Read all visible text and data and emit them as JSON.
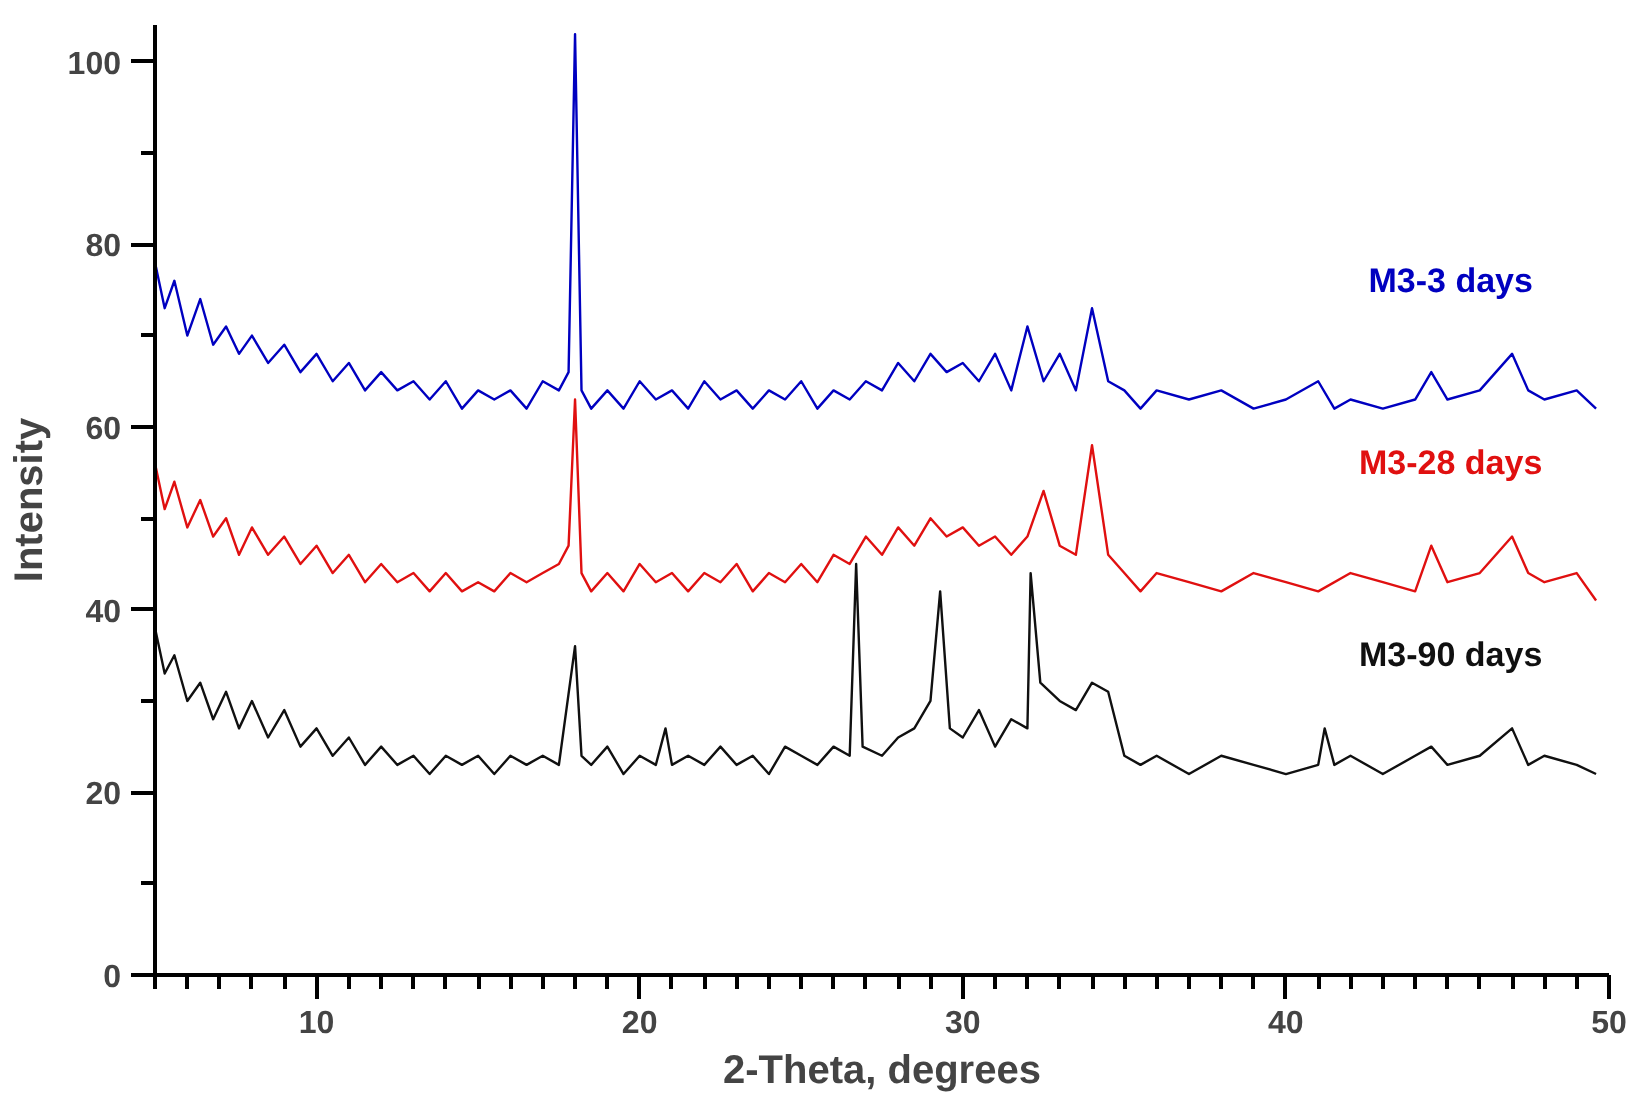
{
  "chart_data": {
    "type": "line",
    "xlabel": "2-Theta, degrees",
    "ylabel": "Intensity",
    "xlim": [
      5,
      50
    ],
    "ylim": [
      0,
      104
    ],
    "xticks": [
      {
        "value": 5,
        "label": null
      },
      {
        "value": 6,
        "label": null
      },
      {
        "value": 7,
        "label": null
      },
      {
        "value": 8,
        "label": null
      },
      {
        "value": 9,
        "label": null
      },
      10,
      {
        "value": 11,
        "label": null
      },
      {
        "value": 12,
        "label": null
      },
      {
        "value": 13,
        "label": null
      },
      {
        "value": 14,
        "label": null
      },
      {
        "value": 15,
        "label": null
      },
      {
        "value": 16,
        "label": null
      },
      {
        "value": 17,
        "label": null
      },
      {
        "value": 18,
        "label": null
      },
      {
        "value": 19,
        "label": null
      },
      20,
      {
        "value": 21,
        "label": null
      },
      {
        "value": 22,
        "label": null
      },
      {
        "value": 23,
        "label": null
      },
      {
        "value": 24,
        "label": null
      },
      {
        "value": 25,
        "label": null
      },
      {
        "value": 26,
        "label": null
      },
      {
        "value": 27,
        "label": null
      },
      {
        "value": 28,
        "label": null
      },
      {
        "value": 29,
        "label": null
      },
      30,
      {
        "value": 31,
        "label": null
      },
      {
        "value": 32,
        "label": null
      },
      {
        "value": 33,
        "label": null
      },
      {
        "value": 34,
        "label": null
      },
      {
        "value": 35,
        "label": null
      },
      {
        "value": 36,
        "label": null
      },
      {
        "value": 37,
        "label": null
      },
      {
        "value": 38,
        "label": null
      },
      {
        "value": 39,
        "label": null
      },
      40,
      {
        "value": 41,
        "label": null
      },
      {
        "value": 42,
        "label": null
      },
      {
        "value": 43,
        "label": null
      },
      {
        "value": 44,
        "label": null
      },
      {
        "value": 45,
        "label": null
      },
      {
        "value": 46,
        "label": null
      },
      {
        "value": 47,
        "label": null
      },
      {
        "value": 48,
        "label": null
      },
      {
        "value": 49,
        "label": null
      },
      50
    ],
    "yticks": [
      0,
      {
        "value": 10,
        "label": null
      },
      20,
      {
        "value": 30,
        "label": null
      },
      40,
      {
        "value": 50,
        "label": null
      },
      60,
      {
        "value": 70,
        "label": null
      },
      80,
      {
        "value": 90,
        "label": null
      },
      100
    ],
    "grid": false,
    "series": [
      {
        "name": "M3-3 days",
        "color": "#0000c0",
        "x": [
          5,
          5.3,
          5.6,
          6,
          6.4,
          6.8,
          7.2,
          7.6,
          8,
          8.5,
          9,
          9.5,
          10,
          10.5,
          11,
          11.5,
          12,
          12.5,
          13,
          13.5,
          14,
          14.5,
          15,
          15.5,
          16,
          16.5,
          17,
          17.5,
          17.8,
          18,
          18.2,
          18.5,
          19,
          19.5,
          20,
          20.5,
          21,
          21.5,
          22,
          22.5,
          23,
          23.5,
          24,
          24.5,
          25,
          25.5,
          26,
          26.5,
          27,
          27.5,
          28,
          28.5,
          29,
          29.5,
          30,
          30.5,
          31,
          31.5,
          32,
          32.5,
          33,
          33.5,
          34,
          34.5,
          35,
          35.5,
          36,
          37,
          38,
          39,
          40,
          41,
          41.5,
          42,
          43,
          44,
          44.5,
          45,
          46,
          47,
          47.5,
          48,
          49,
          49.6
        ],
        "values": [
          78,
          73,
          76,
          70,
          74,
          69,
          71,
          68,
          70,
          67,
          69,
          66,
          68,
          65,
          67,
          64,
          66,
          64,
          65,
          63,
          65,
          62,
          64,
          63,
          64,
          62,
          65,
          64,
          66,
          103,
          64,
          62,
          64,
          62,
          65,
          63,
          64,
          62,
          65,
          63,
          64,
          62,
          64,
          63,
          65,
          62,
          64,
          63,
          65,
          64,
          67,
          65,
          68,
          66,
          67,
          65,
          68,
          64,
          71,
          65,
          68,
          64,
          73,
          65,
          64,
          62,
          64,
          63,
          64,
          62,
          63,
          65,
          62,
          63,
          62,
          63,
          66,
          63,
          64,
          68,
          64,
          63,
          64,
          62
        ]
      },
      {
        "name": "M3-28 days",
        "color": "#e01010",
        "x": [
          5,
          5.3,
          5.6,
          6,
          6.4,
          6.8,
          7.2,
          7.6,
          8,
          8.5,
          9,
          9.5,
          10,
          10.5,
          11,
          11.5,
          12,
          12.5,
          13,
          13.5,
          14,
          14.5,
          15,
          15.5,
          16,
          16.5,
          17,
          17.5,
          17.8,
          18,
          18.2,
          18.5,
          19,
          19.5,
          20,
          20.5,
          21,
          21.5,
          22,
          22.5,
          23,
          23.5,
          24,
          24.5,
          25,
          25.5,
          26,
          26.5,
          27,
          27.5,
          28,
          28.5,
          29,
          29.5,
          30,
          30.5,
          31,
          31.5,
          32,
          32.5,
          33,
          33.5,
          34,
          34.5,
          35,
          35.5,
          36,
          37,
          38,
          39,
          40,
          41,
          42,
          43,
          44,
          44.5,
          45,
          46,
          47,
          47.5,
          48,
          49,
          49.6
        ],
        "values": [
          56,
          51,
          54,
          49,
          52,
          48,
          50,
          46,
          49,
          46,
          48,
          45,
          47,
          44,
          46,
          43,
          45,
          43,
          44,
          42,
          44,
          42,
          43,
          42,
          44,
          43,
          44,
          45,
          47,
          63,
          44,
          42,
          44,
          42,
          45,
          43,
          44,
          42,
          44,
          43,
          45,
          42,
          44,
          43,
          45,
          43,
          46,
          45,
          48,
          46,
          49,
          47,
          50,
          48,
          49,
          47,
          48,
          46,
          48,
          53,
          47,
          46,
          58,
          46,
          44,
          42,
          44,
          43,
          42,
          44,
          43,
          42,
          44,
          43,
          42,
          47,
          43,
          44,
          48,
          44,
          43,
          44,
          41
        ]
      },
      {
        "name": "M3-90 days",
        "color": "#101010",
        "x": [
          5,
          5.3,
          5.6,
          6,
          6.4,
          6.8,
          7.2,
          7.6,
          8,
          8.5,
          9,
          9.5,
          10,
          10.5,
          11,
          11.5,
          12,
          12.5,
          13,
          13.5,
          14,
          14.5,
          15,
          15.5,
          16,
          16.5,
          17,
          17.5,
          18,
          18.2,
          18.5,
          19,
          19.5,
          20,
          20.5,
          20.8,
          21,
          21.5,
          22,
          22.5,
          23,
          23.5,
          24,
          24.5,
          25,
          25.5,
          26,
          26.5,
          26.7,
          26.9,
          27.5,
          28,
          28.5,
          29,
          29.3,
          29.6,
          30,
          30.5,
          31,
          31.5,
          32,
          32.1,
          32.4,
          33,
          33.5,
          34,
          34.5,
          35,
          35.5,
          36,
          37,
          38,
          39,
          40,
          41,
          41.2,
          41.5,
          42,
          43,
          44,
          44.5,
          45,
          46,
          47,
          47.5,
          48,
          49,
          49.6
        ],
        "values": [
          38,
          33,
          35,
          30,
          32,
          28,
          31,
          27,
          30,
          26,
          29,
          25,
          27,
          24,
          26,
          23,
          25,
          23,
          24,
          22,
          24,
          23,
          24,
          22,
          24,
          23,
          24,
          23,
          36,
          24,
          23,
          25,
          22,
          24,
          23,
          27,
          23,
          24,
          23,
          25,
          23,
          24,
          22,
          25,
          24,
          23,
          25,
          24,
          45,
          25,
          24,
          26,
          27,
          30,
          42,
          27,
          26,
          29,
          25,
          28,
          27,
          44,
          32,
          30,
          29,
          32,
          31,
          24,
          23,
          24,
          22,
          24,
          23,
          22,
          23,
          27,
          23,
          24,
          22,
          24,
          25,
          23,
          24,
          27,
          23,
          24,
          23,
          22
        ]
      }
    ]
  }
}
